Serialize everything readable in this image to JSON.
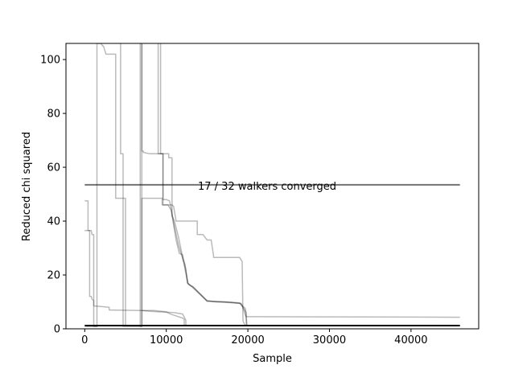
{
  "chart_data": {
    "type": "line",
    "title": "",
    "xlabel": "Sample",
    "ylabel": "Reduced chi squared",
    "xlim": [
      -2300,
      48300
    ],
    "ylim": [
      0,
      106
    ],
    "xticks": [
      0,
      10000,
      20000,
      30000,
      40000
    ],
    "xtick_labels": [
      "0",
      "10000",
      "20000",
      "30000",
      "40000"
    ],
    "yticks": [
      0,
      20,
      40,
      60,
      80,
      100
    ],
    "ytick_labels": [
      "0",
      "20",
      "40",
      "60",
      "80",
      "100"
    ],
    "grid": false,
    "annotation": "17 / 32 walkers converged",
    "colors": {
      "trace": "#000000",
      "trace_opacity": 0.27,
      "converged_line": "#000000",
      "converged_opacity": 0.55,
      "min_line": "#000000"
    },
    "converged_level": {
      "x": [
        0,
        46000
      ],
      "y": [
        53.5,
        53.5
      ]
    },
    "minimum_level": {
      "x": [
        0,
        46000
      ],
      "y": [
        1.2,
        1.2
      ]
    },
    "series": [
      {
        "x": [
          0,
          1500,
          1500,
          2000,
          2200,
          2300,
          2600,
          3800,
          3800,
          5000,
          5000
        ],
        "y": [
          0.9,
          0.9,
          106,
          106,
          105,
          105,
          102,
          102,
          48.5,
          48.5,
          0.9
        ]
      },
      {
        "x": [
          0,
          400,
          400,
          800,
          900,
          1100,
          1100,
          1600
        ],
        "y": [
          47.5,
          47.5,
          36.5,
          36.5,
          35,
          35,
          0.9,
          0.9
        ]
      },
      {
        "x": [
          0,
          600,
          600,
          800,
          900,
          1100,
          1100,
          3000,
          3000,
          7000,
          8500,
          10000,
          10500,
          11000,
          12000,
          12200,
          12200
        ],
        "y": [
          36.5,
          36.5,
          12,
          12,
          11,
          10.5,
          8.5,
          8,
          7,
          6.8,
          6.8,
          6.3,
          5.5,
          5,
          4,
          3.5,
          0.9
        ]
      },
      {
        "x": [
          4400,
          4400,
          4700,
          4700,
          7000,
          7000
        ],
        "y": [
          106,
          65,
          65,
          0.9,
          0.9,
          106
        ]
      },
      {
        "x": [
          7000,
          7000,
          7200,
          7200,
          8000,
          10300,
          10300,
          10700,
          10700,
          11000,
          11500,
          11900,
          12000,
          12400,
          12600,
          13000,
          13200,
          15000,
          16000,
          18000,
          19200,
          19500,
          19700,
          19800,
          20000,
          46000
        ],
        "y": [
          106,
          66,
          66,
          65.5,
          65,
          65,
          63.5,
          63.5,
          42,
          40,
          34,
          28,
          26,
          22,
          17,
          16,
          15.8,
          10.5,
          10,
          9.7,
          9.4,
          7,
          5,
          4.5,
          4.5,
          4.3
        ]
      },
      {
        "x": [
          6800,
          6800,
          7000,
          7000,
          9500,
          9500,
          10700,
          10900,
          11200,
          13800,
          13800,
          14500,
          15000,
          15500,
          15800,
          15800,
          16200,
          16500,
          17000,
          19000,
          19300,
          19400,
          19700
        ],
        "y": [
          106,
          0.9,
          0.9,
          48.5,
          48.5,
          46,
          46,
          45.5,
          40,
          40,
          35,
          35,
          33,
          33,
          27,
          26.5,
          26.5,
          26.5,
          26.5,
          26.5,
          25,
          3,
          0.9
        ]
      },
      {
        "x": [
          9300,
          9300,
          9600,
          9600,
          10000,
          10400,
          11000,
          11500,
          11800,
          12300,
          12600,
          13000,
          15000,
          17000,
          19000,
          19400,
          19800,
          19800
        ],
        "y": [
          106,
          65,
          65,
          48,
          48,
          47.5,
          38,
          31,
          28,
          24,
          17,
          16,
          10.3,
          10,
          9.5,
          8,
          6,
          0.9
        ]
      },
      {
        "x": [
          9000,
          9000,
          9600,
          9600,
          10200,
          10600,
          11200,
          11600,
          12000,
          12300,
          12700,
          13300,
          15000,
          17500,
          19000,
          19700,
          19900
        ],
        "y": [
          106,
          65,
          65,
          46,
          46,
          44,
          33,
          28,
          27.5,
          22,
          16.5,
          15.5,
          10.2,
          10,
          9.6,
          7.5,
          0.9
        ]
      },
      {
        "x": [
          7000,
          8000,
          11000,
          12000,
          12400,
          12400
        ],
        "y": [
          6.8,
          6.5,
          6,
          5.5,
          3.2,
          0.9
        ]
      }
    ]
  }
}
